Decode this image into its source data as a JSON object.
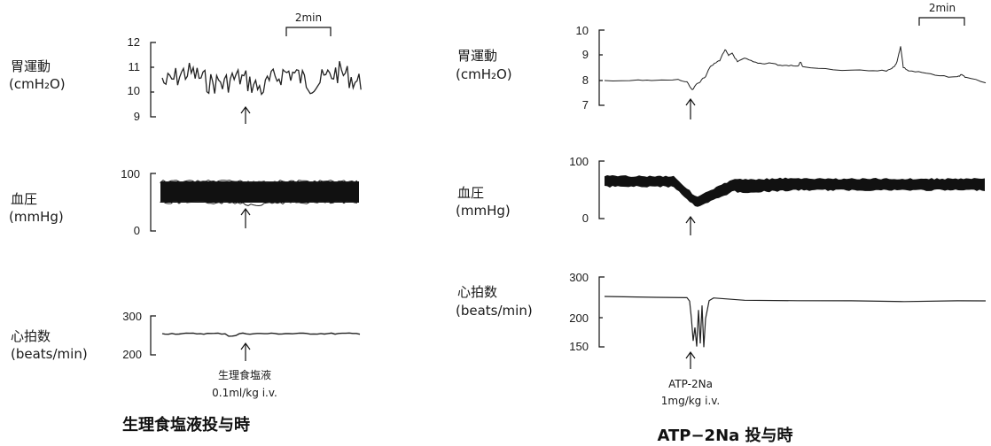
{
  "chart_data": [
    {
      "type": "line",
      "panel": "saline",
      "caption": "生理食塩液投与時",
      "scale_bar": "2min",
      "injection_label": [
        "生理食塩液",
        "0.1ml/kg i.v."
      ],
      "traces": [
        {
          "key": "gastric",
          "label": [
            "胃運動",
            "(cmH₂O)"
          ],
          "ylim": [
            9,
            12
          ],
          "yticks": [
            "12",
            "11",
            "10",
            "9"
          ],
          "description": "irregular oscillation around 10.6",
          "range": [
            9.7,
            11.2
          ]
        },
        {
          "key": "bp",
          "label": [
            "血圧",
            "(mmHg)"
          ],
          "ylim": [
            0,
            100
          ],
          "yticks": [
            "100",
            "0"
          ],
          "description": "dense band",
          "band": [
            50,
            80
          ]
        },
        {
          "key": "hr",
          "label": [
            "心拍数",
            "(beats/min)"
          ],
          "ylim": [
            200,
            300
          ],
          "yticks": [
            "300",
            "200"
          ],
          "description": "flat line",
          "value": 255
        }
      ]
    },
    {
      "type": "line",
      "panel": "atp",
      "caption": "ATP−2Na 投与時",
      "scale_bar": "2min",
      "injection_label": [
        "ATP-2Na",
        "1mg/kg i.v."
      ],
      "traces": [
        {
          "key": "gastric",
          "label": [
            "胃運動",
            "(cmH₂O)"
          ],
          "ylim": [
            7,
            10
          ],
          "yticks": [
            "10",
            "9",
            "8",
            "7"
          ],
          "description": "baseline 8, dip to 7.6 at injection, rise to ~9.2, spikes",
          "baseline": 8.0
        },
        {
          "key": "bp",
          "label": [
            "血圧",
            "(mmHg)"
          ],
          "ylim": [
            0,
            100
          ],
          "yticks": [
            "100",
            "0"
          ],
          "description": "band ~55-70, drop to ~25 at injection then recovery",
          "band": [
            55,
            72
          ]
        },
        {
          "key": "hr",
          "label": [
            "心拍数",
            "(beats/min)"
          ],
          "ylim": [
            150,
            300
          ],
          "yticks": [
            "300",
            "200",
            "150"
          ],
          "description": "flat ~255 with transient drop to ~150",
          "value": 255
        }
      ]
    }
  ],
  "colors": {
    "trace": "#222222"
  }
}
